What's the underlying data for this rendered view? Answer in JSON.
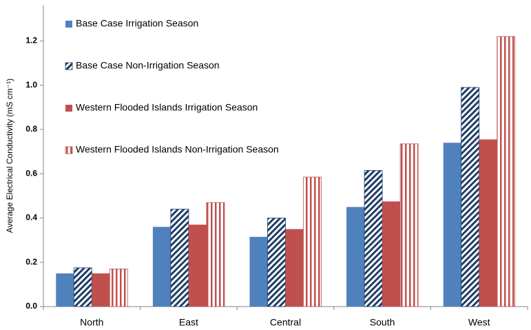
{
  "chart_data": {
    "type": "bar",
    "y_label": "Average Electrical Conductivity (mS cm⁻¹)",
    "categories": [
      "North",
      "East",
      "Central",
      "South",
      "West"
    ],
    "series": [
      {
        "name": "Base Case Irrigation Season",
        "color": "#4f81bd",
        "fill": "solid",
        "values": [
          0.15,
          0.36,
          0.315,
          0.45,
          0.74
        ]
      },
      {
        "name": "Base Case Non-Irrigation Season",
        "color": "#1f3d66",
        "fill": "diagonal",
        "values": [
          0.175,
          0.44,
          0.4,
          0.615,
          0.99
        ]
      },
      {
        "name": "Western Flooded Islands Irrigation Season",
        "color": "#c0504d",
        "fill": "solid",
        "values": [
          0.15,
          0.37,
          0.35,
          0.475,
          0.755
        ]
      },
      {
        "name": "Western Flooded Islands Non-Irrigation Season",
        "color": "#c0504d",
        "fill": "vertical",
        "values": [
          0.17,
          0.47,
          0.585,
          0.735,
          1.22
        ]
      }
    ],
    "ylim": [
      0,
      1.36
    ],
    "yticks": [
      {
        "value": 0,
        "label": "0.0"
      },
      0.2,
      0.4,
      0.6,
      0.8,
      {
        "value": 1,
        "label": "1.0"
      },
      1.2
    ],
    "grid": false,
    "legend": "top-left"
  }
}
